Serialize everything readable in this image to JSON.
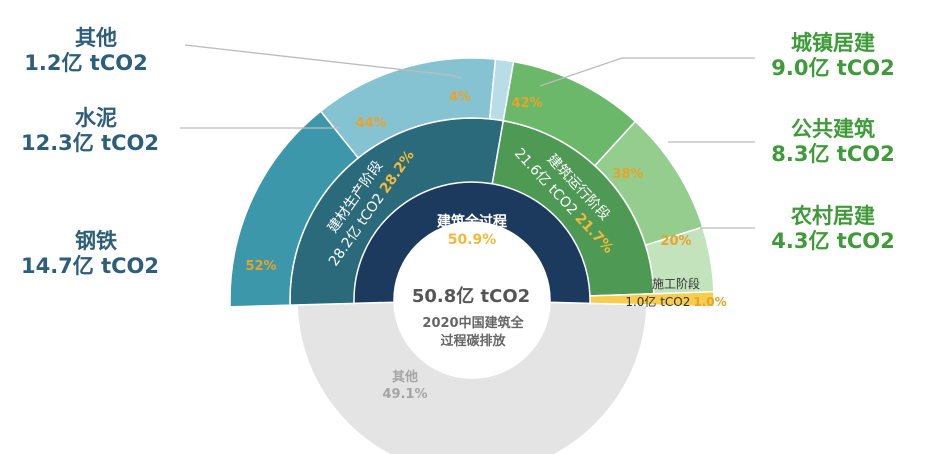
{
  "chart_data": {
    "type": "sunburst",
    "title": "",
    "total": {
      "value": "50.8亿 tCO2",
      "label_lines": [
        "2020中国建筑全",
        "过程碳排放"
      ]
    },
    "ring_center": [
      {
        "name": "建筑全过程",
        "pct": "50.9%",
        "share": 50.9,
        "color": "#1c3a5e"
      },
      {
        "name": "其他",
        "pct": "49.1%",
        "share": 49.1,
        "color": "#e4e4e4"
      }
    ],
    "ring_stages": [
      {
        "name": "建材生产阶段",
        "value": "28.2亿 tCO2",
        "pct": "28.2%",
        "share": 28.2,
        "color": "#2b6a7a"
      },
      {
        "name": "建筑运行阶段",
        "value": "21.6亿 tCO2",
        "pct": "21.7%",
        "share": 21.7,
        "color": "#4e9a55"
      },
      {
        "name": "施工阶段",
        "value": "1.0亿 tCO2",
        "pct": "1.0%",
        "share": 1.0,
        "color": "#f6cd4f"
      }
    ],
    "ring_outer": [
      {
        "name": "钢铁",
        "value": "14.7亿 tCO2",
        "pct": "52%",
        "share": 14.7,
        "color": "#3b97a9",
        "side": "left"
      },
      {
        "name": "水泥",
        "value": "12.3亿 tCO2",
        "pct": "44%",
        "share": 12.3,
        "color": "#86c3d2",
        "side": "left"
      },
      {
        "name": "其他",
        "value": "1.2亿 tCO2",
        "pct": "4%",
        "share": 1.2,
        "color": "#b9dde6",
        "side": "left"
      },
      {
        "name": "城镇居建",
        "value": "9.0亿 tCO2",
        "pct": "42%",
        "share": 9.0,
        "color": "#6bb86a",
        "side": "right"
      },
      {
        "name": "公共建筑",
        "value": "8.3亿 tCO2",
        "pct": "38%",
        "share": 8.3,
        "color": "#95cd8e",
        "side": "right"
      },
      {
        "name": "农村居建",
        "value": "4.3亿 tCO2",
        "pct": "20%",
        "share": 4.3,
        "color": "#c3e3bd",
        "side": "right"
      }
    ]
  }
}
